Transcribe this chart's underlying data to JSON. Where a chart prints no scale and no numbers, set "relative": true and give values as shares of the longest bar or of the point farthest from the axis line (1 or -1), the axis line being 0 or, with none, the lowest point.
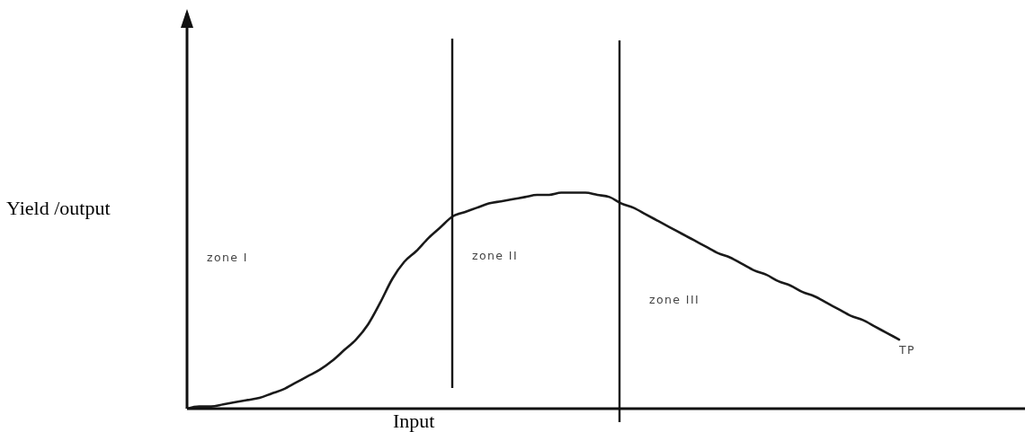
{
  "chart_data": {
    "type": "line",
    "relative": true,
    "xlabel": "Input",
    "ylabel": "Yield /output",
    "categories": [
      null,
      null,
      null,
      null,
      null,
      null,
      null,
      null,
      null,
      null,
      null,
      null,
      null,
      null,
      null,
      null,
      null,
      null,
      null,
      null,
      null,
      null,
      null,
      null,
      null,
      null,
      null,
      null,
      null,
      null,
      null,
      null,
      null,
      null,
      null,
      null,
      null,
      null,
      null,
      null,
      null,
      null,
      null,
      null,
      null,
      null,
      null,
      null,
      null,
      null,
      null,
      null,
      null,
      null,
      null,
      null,
      null,
      null,
      null,
      null
    ],
    "series": [
      {
        "color": "#1a1a1a",
        "values": [
          0,
          0.01,
          0.01,
          0.02,
          0.03,
          0.04,
          0.05,
          0.07,
          0.09,
          0.12,
          0.15,
          0.18,
          0.22,
          0.27,
          0.32,
          0.39,
          0.49,
          0.6,
          0.68,
          0.73,
          0.79,
          0.84,
          0.89,
          0.91,
          0.93,
          0.95,
          0.96,
          0.97,
          0.98,
          0.99,
          0.99,
          1,
          1,
          1,
          0.99,
          0.98,
          0.95,
          0.93,
          0.9,
          0.87,
          0.84,
          0.81,
          0.78,
          0.75,
          0.72,
          0.7,
          0.67,
          0.64,
          0.62,
          0.59,
          0.57,
          0.54,
          0.52,
          0.49,
          0.46,
          0.43,
          0.41,
          0.38,
          0.35,
          0.32
        ]
      }
    ],
    "annotations": [
      "zone I",
      "zone II",
      "zone III",
      "TP"
    ]
  }
}
